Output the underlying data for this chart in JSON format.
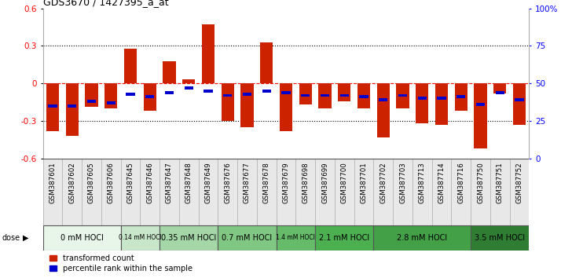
{
  "title": "GDS3670 / 1427395_a_at",
  "samples": [
    "GSM387601",
    "GSM387602",
    "GSM387605",
    "GSM387606",
    "GSM387645",
    "GSM387646",
    "GSM387647",
    "GSM387648",
    "GSM387649",
    "GSM387676",
    "GSM387677",
    "GSM387678",
    "GSM387679",
    "GSM387698",
    "GSM387699",
    "GSM387700",
    "GSM387701",
    "GSM387702",
    "GSM387703",
    "GSM387713",
    "GSM387714",
    "GSM387716",
    "GSM387750",
    "GSM387751",
    "GSM387752"
  ],
  "transformed_count": [
    -0.38,
    -0.42,
    -0.19,
    -0.2,
    0.28,
    -0.22,
    0.18,
    0.03,
    0.47,
    -0.3,
    -0.35,
    0.33,
    -0.38,
    -0.17,
    -0.2,
    -0.14,
    -0.2,
    -0.43,
    -0.2,
    -0.32,
    -0.33,
    -0.22,
    -0.52,
    -0.08,
    -0.33
  ],
  "percentile_rank": [
    0.35,
    0.35,
    0.38,
    0.37,
    0.43,
    0.41,
    0.44,
    0.47,
    0.45,
    0.42,
    0.43,
    0.45,
    0.44,
    0.42,
    0.42,
    0.42,
    0.41,
    0.39,
    0.42,
    0.4,
    0.4,
    0.41,
    0.36,
    0.44,
    0.39
  ],
  "dose_groups": [
    {
      "label": "0 mM HOCl",
      "start": 0,
      "end": 4,
      "color": "#e8f5e9"
    },
    {
      "label": "0.14 mM HOCl",
      "start": 4,
      "end": 6,
      "color": "#c8e6c9"
    },
    {
      "label": "0.35 mM HOCl",
      "start": 6,
      "end": 9,
      "color": "#a5d6a7"
    },
    {
      "label": "0.7 mM HOCl",
      "start": 9,
      "end": 12,
      "color": "#81c784"
    },
    {
      "label": "1.4 mM HOCl",
      "start": 12,
      "end": 14,
      "color": "#66bb6a"
    },
    {
      "label": "2.1 mM HOCl",
      "start": 14,
      "end": 17,
      "color": "#4caf50"
    },
    {
      "label": "2.8 mM HOCl",
      "start": 17,
      "end": 22,
      "color": "#43a047"
    },
    {
      "label": "3.5 mM HOCl",
      "start": 22,
      "end": 25,
      "color": "#2e7d32"
    }
  ],
  "bar_color": "#cc2200",
  "percentile_color": "#0000cc",
  "ylim": [
    -0.6,
    0.6
  ],
  "yticks": [
    -0.6,
    -0.3,
    0.0,
    0.3,
    0.6
  ],
  "bar_width": 0.65,
  "percentile_bar_width": 0.45,
  "percentile_bar_height": 0.025
}
